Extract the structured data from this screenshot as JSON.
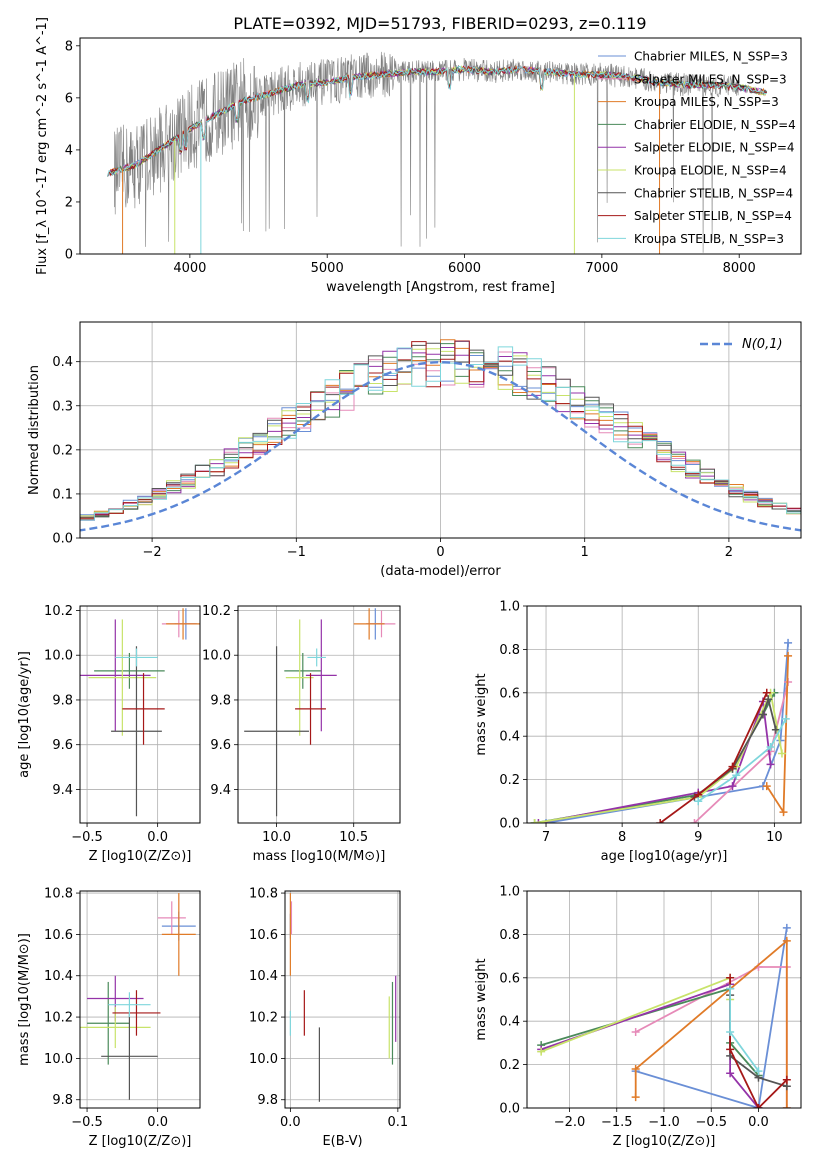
{
  "title": "PLATE=0392, MJD=51793, FIBERID=0293, z=0.119",
  "colors": {
    "chabrier_miles": "#6a8fd6",
    "salpeter_miles": "#e68ab8",
    "kroupa_miles": "#e07b28",
    "chabrier_elodie": "#4a8a5a",
    "salpeter_elodie": "#9433a8",
    "kroupa_elodie": "#c8e36a",
    "chabrier_stelib": "#555555",
    "salpeter_stelib": "#a51818",
    "kroupa_stelib": "#7fd6dc",
    "data": "#808080",
    "normal": "#5a86d6",
    "grid": "#b0b0b0"
  },
  "chart_data": [
    {
      "id": "spectrum",
      "type": "line",
      "xlabel": "wavelength [Angstrom, rest frame]",
      "ylabel": "Flux [f_λ 10^-17 erg cm^-2 s^-1 A^-1]",
      "xlim": [
        3200,
        8450
      ],
      "ylim": [
        0,
        8.3
      ],
      "xticks": [
        4000,
        5000,
        6000,
        7000,
        8000
      ],
      "yticks": [
        0,
        2,
        4,
        6,
        8
      ],
      "grid": false,
      "legend_position": "right",
      "legend": [
        "Chabrier MILES, N_SSP=3",
        "Salpeter MILES, N_SSP=3",
        "Kroupa MILES, N_SSP=3",
        "Chabrier ELODIE, N_SSP=4",
        "Salpeter ELODIE, N_SSP=4",
        "Kroupa ELODIE, N_SSP=4",
        "Chabrier STELIB, N_SSP=4",
        "Salpeter STELIB, N_SSP=4",
        "Kroupa STELIB, N_SSP=3"
      ],
      "continuum": {
        "x": [
          3400,
          3600,
          3800,
          4000,
          4200,
          4400,
          4600,
          4800,
          5000,
          5200,
          5400,
          5600,
          5800,
          6000,
          6200,
          6400,
          6600,
          6800,
          7000,
          7200,
          7400,
          7600,
          7800,
          8000,
          8200
        ],
        "y": [
          3.1,
          3.4,
          4.1,
          4.8,
          5.4,
          5.9,
          6.2,
          6.5,
          6.6,
          6.8,
          6.9,
          7.0,
          7.0,
          7.1,
          7.0,
          7.1,
          7.0,
          6.9,
          6.9,
          6.8,
          6.6,
          6.5,
          6.5,
          6.4,
          6.2
        ]
      }
    },
    {
      "id": "residuals",
      "type": "line",
      "xlabel": "(data-model)/error",
      "ylabel": "Normed distribution",
      "xlim": [
        -2.5,
        2.5
      ],
      "ylim": [
        0,
        0.49
      ],
      "xticks": [
        -2,
        -1,
        0,
        1,
        2
      ],
      "yticks": [
        0.0,
        0.1,
        0.2,
        0.3,
        0.4
      ],
      "grid": true,
      "legend_position": "top-right",
      "legend": [
        "N(0,1)"
      ],
      "normal_curve": {
        "mean": 0,
        "sigma": 1
      },
      "bin_width": 0.1
    },
    {
      "id": "age_vs_Z",
      "type": "scatter",
      "xlabel": "Z [log10(Z/Z⊙)]",
      "ylabel": "age [log10(age/yr)]",
      "xlim": [
        -0.55,
        0.3
      ],
      "ylim": [
        9.25,
        10.22
      ],
      "xticks": [
        -0.5,
        0.0
      ],
      "yticks": [
        9.4,
        9.6,
        9.8,
        10.0,
        10.2
      ],
      "grid": true,
      "points": [
        {
          "model": "chabrier_miles",
          "x": 0.2,
          "y": 10.14,
          "xerr": 0.08,
          "yerr": 0.07
        },
        {
          "model": "salpeter_miles",
          "x": 0.15,
          "y": 10.14,
          "xerr": 0.12,
          "yerr": 0.06
        },
        {
          "model": "kroupa_miles",
          "x": 0.18,
          "y": 10.14,
          "xerr": 0.12,
          "yerr": 0.07
        },
        {
          "model": "chabrier_elodie",
          "x": -0.2,
          "y": 9.93,
          "xerr": 0.25,
          "yerr": 0.08
        },
        {
          "model": "salpeter_elodie",
          "x": -0.3,
          "y": 9.91,
          "xerr": 0.25,
          "yerr": 0.25
        },
        {
          "model": "kroupa_elodie",
          "x": -0.25,
          "y": 9.9,
          "xerr": 0.24,
          "yerr": 0.26
        },
        {
          "model": "chabrier_stelib",
          "x": -0.15,
          "y": 9.66,
          "xerr": 0.18,
          "yerr": 0.38
        },
        {
          "model": "salpeter_stelib",
          "x": -0.1,
          "y": 9.76,
          "xerr": 0.15,
          "yerr": 0.16
        },
        {
          "model": "kroupa_stelib",
          "x": -0.15,
          "y": 9.99,
          "xerr": 0.15,
          "yerr": 0.04
        }
      ]
    },
    {
      "id": "age_vs_mass",
      "type": "scatter",
      "xlabel": "mass [log10(M/M⊙)]",
      "ylabel": "",
      "xlim": [
        9.75,
        10.8
      ],
      "ylim": [
        9.25,
        10.22
      ],
      "xticks": [
        10.0,
        10.5
      ],
      "yticks": [
        9.4,
        9.6,
        9.8,
        10.0,
        10.2
      ],
      "grid": true,
      "points": [
        {
          "model": "chabrier_miles",
          "x": 10.64,
          "y": 10.14,
          "xerr": 0.06,
          "yerr": 0.07
        },
        {
          "model": "salpeter_miles",
          "x": 10.68,
          "y": 10.14,
          "xerr": 0.09,
          "yerr": 0.06
        },
        {
          "model": "kroupa_miles",
          "x": 10.6,
          "y": 10.14,
          "xerr": 0.1,
          "yerr": 0.07
        },
        {
          "model": "chabrier_elodie",
          "x": 10.17,
          "y": 9.93,
          "xerr": 0.12,
          "yerr": 0.08
        },
        {
          "model": "salpeter_elodie",
          "x": 10.29,
          "y": 9.91,
          "xerr": 0.1,
          "yerr": 0.25
        },
        {
          "model": "kroupa_elodie",
          "x": 10.15,
          "y": 9.9,
          "xerr": 0.09,
          "yerr": 0.26
        },
        {
          "model": "chabrier_stelib",
          "x": 10.0,
          "y": 9.66,
          "xerr": 0.21,
          "yerr": 0.38
        },
        {
          "model": "salpeter_stelib",
          "x": 10.22,
          "y": 9.76,
          "xerr": 0.1,
          "yerr": 0.16
        },
        {
          "model": "kroupa_stelib",
          "x": 10.26,
          "y": 9.99,
          "xerr": 0.06,
          "yerr": 0.04
        }
      ]
    },
    {
      "id": "massweight_vs_age",
      "type": "line",
      "xlabel": "age [log10(age/yr)]",
      "ylabel": "mass weight",
      "xlim": [
        6.75,
        10.35
      ],
      "ylim": [
        0,
        1.0
      ],
      "xticks": [
        7,
        8,
        9,
        10
      ],
      "yticks": [
        0.0,
        0.2,
        0.4,
        0.6,
        0.8,
        1.0
      ],
      "grid": true,
      "series": [
        {
          "model": "chabrier_miles",
          "x": [
            7.0,
            9.85,
            10.08,
            10.18
          ],
          "y": [
            0.0,
            0.17,
            0.38,
            0.83
          ]
        },
        {
          "model": "salpeter_miles",
          "x": [
            8.95,
            9.95,
            10.18
          ],
          "y": [
            0.0,
            0.33,
            0.65
          ]
        },
        {
          "model": "kroupa_miles",
          "x": [
            9.9,
            10.12,
            10.18
          ],
          "y": [
            0.17,
            0.05,
            0.77
          ]
        },
        {
          "model": "chabrier_elodie",
          "x": [
            6.85,
            9.0,
            9.45,
            9.85,
            10.0
          ],
          "y": [
            0.0,
            0.13,
            0.25,
            0.5,
            0.6
          ]
        },
        {
          "model": "salpeter_elodie",
          "x": [
            6.9,
            9.0,
            9.45,
            9.85,
            9.95
          ],
          "y": [
            0.0,
            0.14,
            0.17,
            0.56,
            0.27
          ]
        },
        {
          "model": "kroupa_elodie",
          "x": [
            6.85,
            9.0,
            9.5,
            9.95,
            10.1
          ],
          "y": [
            0.0,
            0.12,
            0.26,
            0.6,
            0.32
          ]
        },
        {
          "model": "chabrier_stelib",
          "x": [
            8.95,
            9.45,
            9.85,
            9.92,
            10.02
          ],
          "y": [
            0.12,
            0.25,
            0.5,
            0.57,
            0.43
          ]
        },
        {
          "model": "salpeter_stelib",
          "x": [
            8.5,
            9.0,
            9.45,
            9.9
          ],
          "y": [
            0.0,
            0.13,
            0.26,
            0.6
          ]
        },
        {
          "model": "kroupa_stelib",
          "x": [
            9.0,
            9.5,
            9.95,
            10.15
          ],
          "y": [
            0.1,
            0.22,
            0.35,
            0.48
          ]
        }
      ]
    },
    {
      "id": "mass_vs_Z",
      "type": "scatter",
      "xlabel": "Z [log10(Z/Z⊙)]",
      "ylabel": "mass [log10(M/M⊙)]",
      "xlim": [
        -0.55,
        0.3
      ],
      "ylim": [
        9.76,
        10.81
      ],
      "xticks": [
        -0.5,
        0.0
      ],
      "yticks": [
        9.8,
        10.0,
        10.2,
        10.4,
        10.6,
        10.8
      ],
      "grid": true,
      "points": [
        {
          "model": "chabrier_miles",
          "x": 0.15,
          "y": 10.64,
          "xerr": 0.12,
          "yerr": 0.07
        },
        {
          "model": "salpeter_miles",
          "x": 0.1,
          "y": 10.68,
          "xerr": 0.1,
          "yerr": 0.08
        },
        {
          "model": "kroupa_miles",
          "x": 0.15,
          "y": 10.6,
          "xerr": 0.12,
          "yerr": 0.2
        },
        {
          "model": "chabrier_elodie",
          "x": -0.35,
          "y": 10.17,
          "xerr": 0.15,
          "yerr": 0.2
        },
        {
          "model": "salpeter_elodie",
          "x": -0.3,
          "y": 10.29,
          "xerr": 0.2,
          "yerr": 0.11
        },
        {
          "model": "kroupa_elodie",
          "x": -0.3,
          "y": 10.15,
          "xerr": 0.25,
          "yerr": 0.1
        },
        {
          "model": "chabrier_stelib",
          "x": -0.2,
          "y": 10.01,
          "xerr": 0.2,
          "yerr": 0.21
        },
        {
          "model": "salpeter_stelib",
          "x": -0.15,
          "y": 10.22,
          "xerr": 0.17,
          "yerr": 0.11
        },
        {
          "model": "kroupa_stelib",
          "x": -0.2,
          "y": 10.26,
          "xerr": 0.15,
          "yerr": 0.06
        }
      ]
    },
    {
      "id": "mass_vs_ebv",
      "type": "scatter",
      "xlabel": "E(B-V)",
      "ylabel": "",
      "xlim": [
        -0.005,
        0.102
      ],
      "ylim": [
        9.76,
        10.81
      ],
      "xticks": [
        0.0,
        0.1
      ],
      "yticks": [
        9.8,
        10.0,
        10.2,
        10.4,
        10.6,
        10.8
      ],
      "grid": true,
      "points": [
        {
          "model": "chabrier_miles",
          "x": 0.0,
          "y": 10.64,
          "xerr": 0.0,
          "yerr": 0.06
        },
        {
          "model": "salpeter_miles",
          "x": 0.001,
          "y": 10.68,
          "xerr": 0.0,
          "yerr": 0.08
        },
        {
          "model": "kroupa_miles",
          "x": 0.0,
          "y": 10.6,
          "xerr": 0.0,
          "yerr": 0.2
        },
        {
          "model": "chabrier_elodie",
          "x": 0.095,
          "y": 10.17,
          "xerr": 0.0,
          "yerr": 0.2
        },
        {
          "model": "salpeter_elodie",
          "x": 0.098,
          "y": 10.24,
          "xerr": 0.0,
          "yerr": 0.16
        },
        {
          "model": "kroupa_elodie",
          "x": 0.092,
          "y": 10.15,
          "xerr": 0.0,
          "yerr": 0.15
        },
        {
          "model": "chabrier_stelib",
          "x": 0.027,
          "y": 9.97,
          "xerr": 0.0,
          "yerr": 0.18
        },
        {
          "model": "salpeter_stelib",
          "x": 0.013,
          "y": 10.22,
          "xerr": 0.0,
          "yerr": 0.11
        },
        {
          "model": "kroupa_stelib",
          "x": 0.0,
          "y": 10.17,
          "xerr": 0.0,
          "yerr": 0.06
        }
      ]
    },
    {
      "id": "massweight_vs_Z",
      "type": "line",
      "xlabel": "Z [log10(Z/Z⊙)]",
      "ylabel": "mass weight",
      "xlim": [
        -2.45,
        0.45
      ],
      "ylim": [
        0,
        1.0
      ],
      "xticks": [
        -2.0,
        -1.5,
        -1.0,
        -0.5,
        0.0
      ],
      "yticks": [
        0.0,
        0.2,
        0.4,
        0.6,
        0.8,
        1.0
      ],
      "grid": true,
      "series": [
        {
          "model": "chabrier_miles",
          "x": [
            -1.3,
            0.0,
            0.3
          ],
          "y": [
            0.17,
            0.0,
            0.83
          ]
        },
        {
          "model": "salpeter_miles",
          "x": [
            -1.3,
            0.0,
            0.3,
            0.3
          ],
          "y": [
            0.35,
            0.65,
            0.65,
            0.0
          ]
        },
        {
          "model": "kroupa_miles",
          "x": [
            -1.3,
            -1.3,
            0.3,
            0.3
          ],
          "y": [
            0.05,
            0.18,
            0.77,
            0.0
          ]
        },
        {
          "model": "chabrier_elodie",
          "x": [
            -2.3,
            -0.3,
            -0.3,
            0.0
          ],
          "y": [
            0.29,
            0.55,
            0.3,
            0.15
          ]
        },
        {
          "model": "salpeter_elodie",
          "x": [
            -2.3,
            -0.3,
            -0.3,
            0.0
          ],
          "y": [
            0.27,
            0.57,
            0.16,
            0.0
          ]
        },
        {
          "model": "kroupa_elodie",
          "x": [
            -2.3,
            -0.3,
            -0.3
          ],
          "y": [
            0.26,
            0.6,
            0.5
          ]
        },
        {
          "model": "chabrier_stelib",
          "x": [
            -0.3,
            -0.3,
            0.0,
            0.3
          ],
          "y": [
            0.52,
            0.24,
            0.14,
            0.1
          ]
        },
        {
          "model": "salpeter_stelib",
          "x": [
            -0.3,
            -0.3,
            0.0,
            0.3
          ],
          "y": [
            0.6,
            0.27,
            0.0,
            0.13
          ]
        },
        {
          "model": "kroupa_stelib",
          "x": [
            -0.3,
            -0.3,
            0.0
          ],
          "y": [
            0.55,
            0.35,
            0.17
          ]
        }
      ]
    }
  ]
}
